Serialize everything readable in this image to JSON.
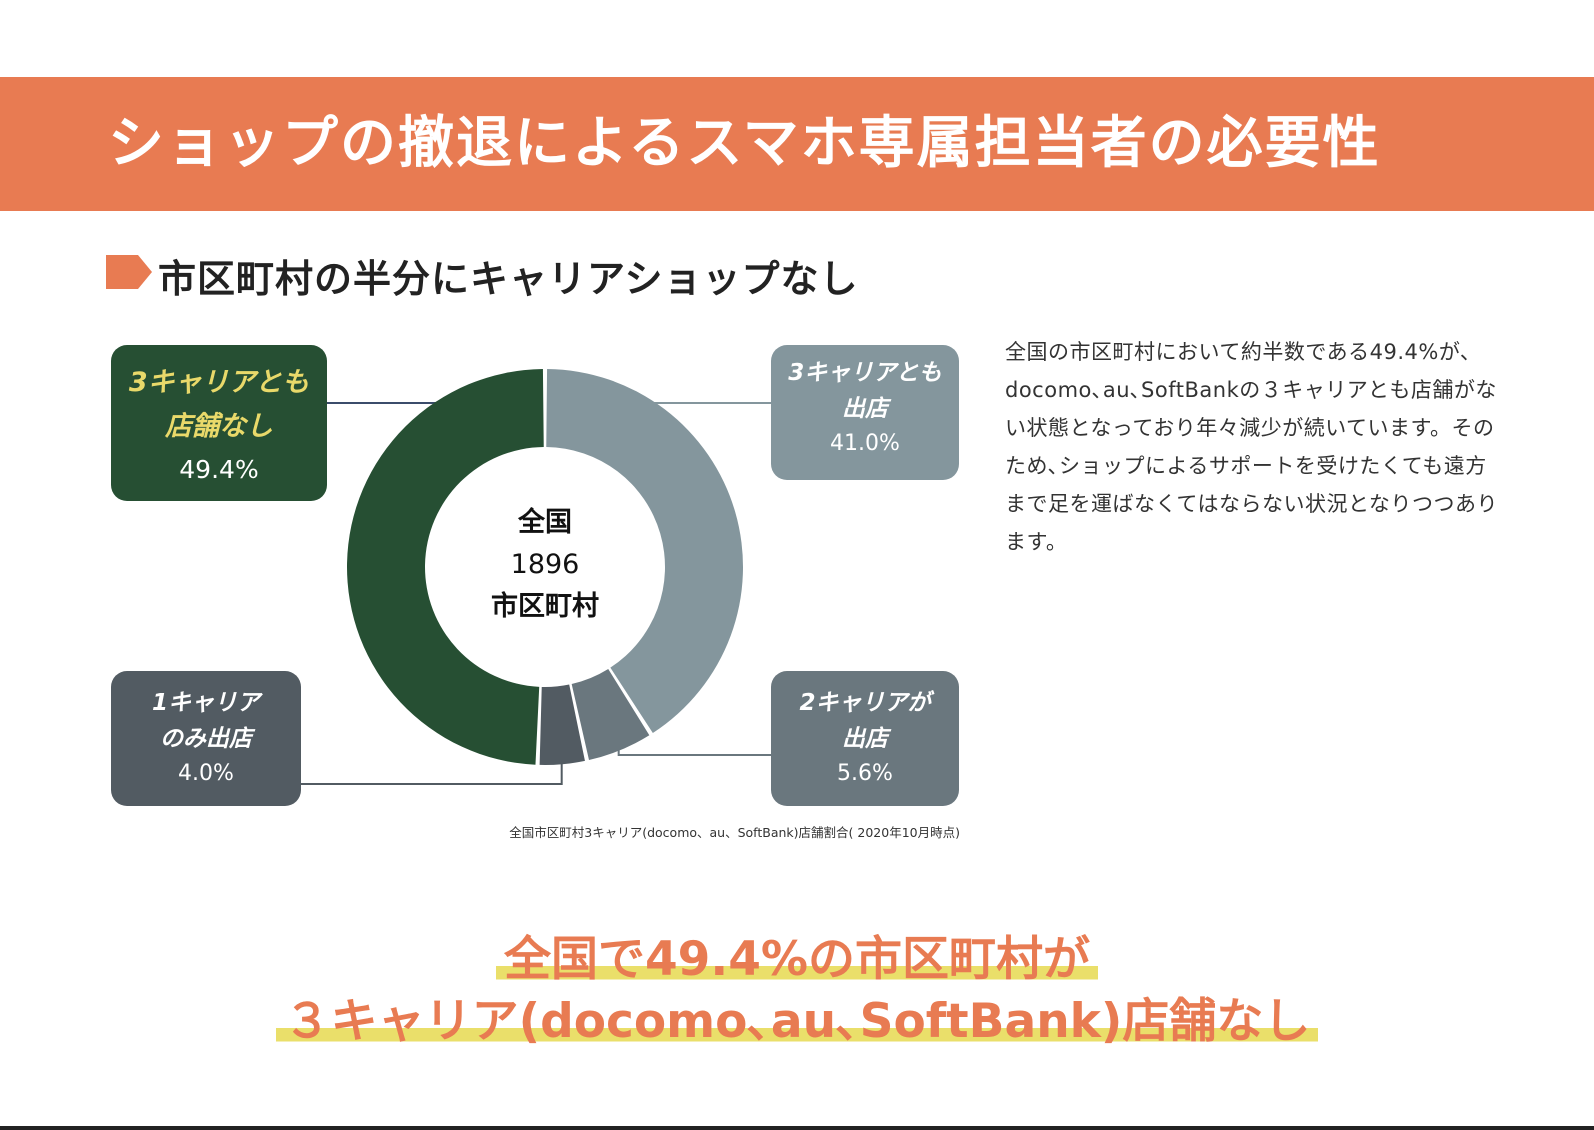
{
  "header": {
    "title": "ショップの撤退によるスマホ専属担当者の必要性"
  },
  "section": {
    "heading": "市区町村の半分にキャリアショップなし"
  },
  "colors": {
    "accent": "#e87b52",
    "highlight": "#eadf6a",
    "none": "#264f33",
    "all": "#84969d",
    "two": "#6a777e",
    "one": "#525b62"
  },
  "chart_data": {
    "type": "pie",
    "style": "donut",
    "center": {
      "line1": "全国",
      "line2": "1896",
      "line3": "市区町村"
    },
    "slices": [
      {
        "key": "all",
        "label_line1": "3キャリアとも",
        "label_line2": "出店",
        "value": 41.0,
        "value_label": "41.0%",
        "color": "#84969d"
      },
      {
        "key": "two",
        "label_line1": "2キャリアが",
        "label_line2": "出店",
        "value": 5.6,
        "value_label": "5.6%",
        "color": "#6a777e"
      },
      {
        "key": "one",
        "label_line1": "1キャリア",
        "label_line2": "のみ出店",
        "value": 4.0,
        "value_label": "4.0%",
        "color": "#525b62"
      },
      {
        "key": "none",
        "label_line1": "3キャリアとも",
        "label_line2": "店舗なし",
        "value": 49.4,
        "value_label": "49.4%",
        "color": "#264f33"
      }
    ],
    "source": "全国市区町村3キャリア(docomo、au、SoftBank)店舗割合( 2020年10月時点)"
  },
  "description": "全国の市区町村において約半数である49.4%が､docomo､au､SoftBankの３キャリアとも店舗がない状態となっており年々減少が続いています。そのため､ショップによるサポートを受けたくても遠方まで足を運ばなくてはならない状況となりつつあります。",
  "highlight": {
    "line1": "全国で49.4%の市区町村が",
    "line2": "３キャリア(docomo､au､SoftBank)店舗なし"
  }
}
